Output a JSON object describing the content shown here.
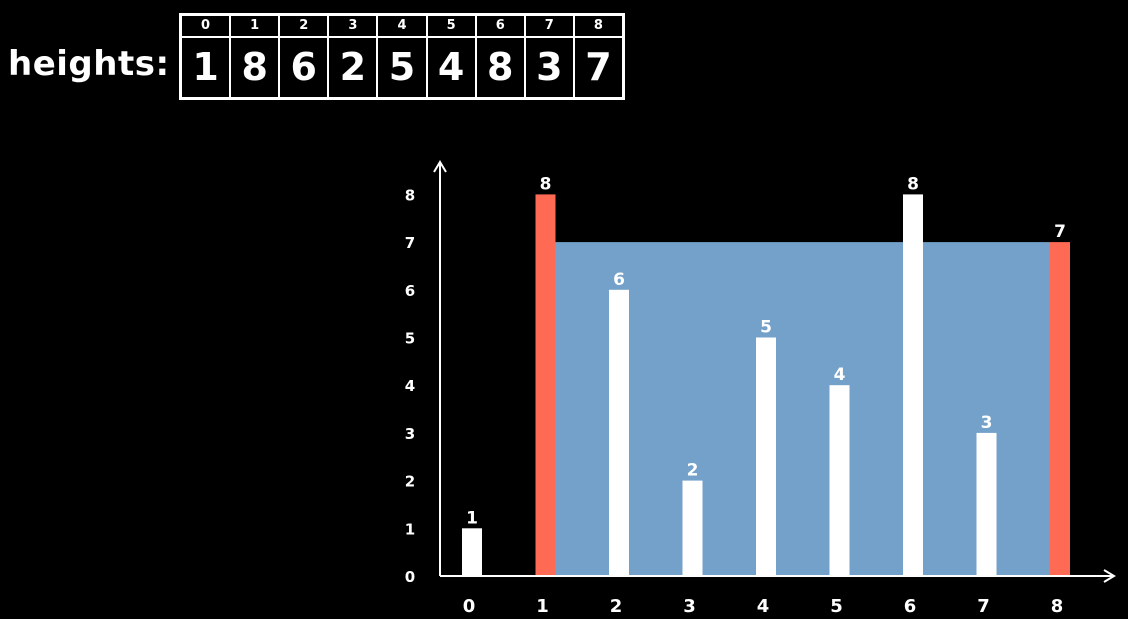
{
  "array_label": "heights:",
  "array": {
    "indices": [
      "0",
      "1",
      "2",
      "3",
      "4",
      "5",
      "6",
      "7",
      "8"
    ],
    "values": [
      "1",
      "8",
      "6",
      "2",
      "5",
      "4",
      "8",
      "3",
      "7"
    ]
  },
  "colors": {
    "background": "#000000",
    "bar": "#ffffff",
    "highlight_bar": "#ff6a55",
    "water_area": "#74a1ca",
    "axis": "#ffffff"
  },
  "chart_data": {
    "type": "bar",
    "categories": [
      "0",
      "1",
      "2",
      "3",
      "4",
      "5",
      "6",
      "7",
      "8"
    ],
    "values": [
      1,
      8,
      6,
      2,
      5,
      4,
      8,
      3,
      7
    ],
    "highlighted": [
      1,
      8
    ],
    "area": {
      "from": 1,
      "to": 8,
      "height": 7
    },
    "yticks": [
      0,
      1,
      2,
      3,
      4,
      5,
      6,
      7,
      8
    ],
    "ylim": [
      0,
      8
    ],
    "title": "",
    "xlabel": "",
    "ylabel": "",
    "grid": false
  }
}
